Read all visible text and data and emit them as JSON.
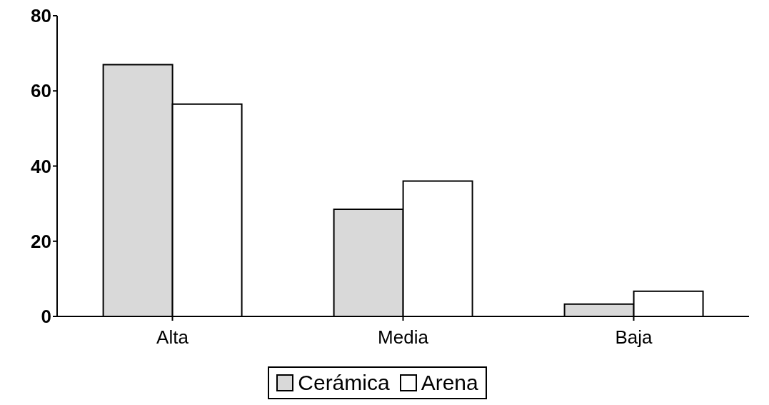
{
  "chart_data": {
    "type": "bar",
    "categories": [
      "Alta",
      "Media",
      "Baja"
    ],
    "series": [
      {
        "name": "Cerámica",
        "color": "#d9d9d9",
        "values": [
          67,
          28.5,
          3.3
        ]
      },
      {
        "name": "Arena",
        "color": "#ffffff",
        "values": [
          56.5,
          36,
          6.7
        ]
      }
    ],
    "ylim": [
      0,
      80
    ],
    "yticks": [
      0,
      20,
      40,
      60,
      80
    ],
    "grid": false,
    "legend": "bottom"
  }
}
